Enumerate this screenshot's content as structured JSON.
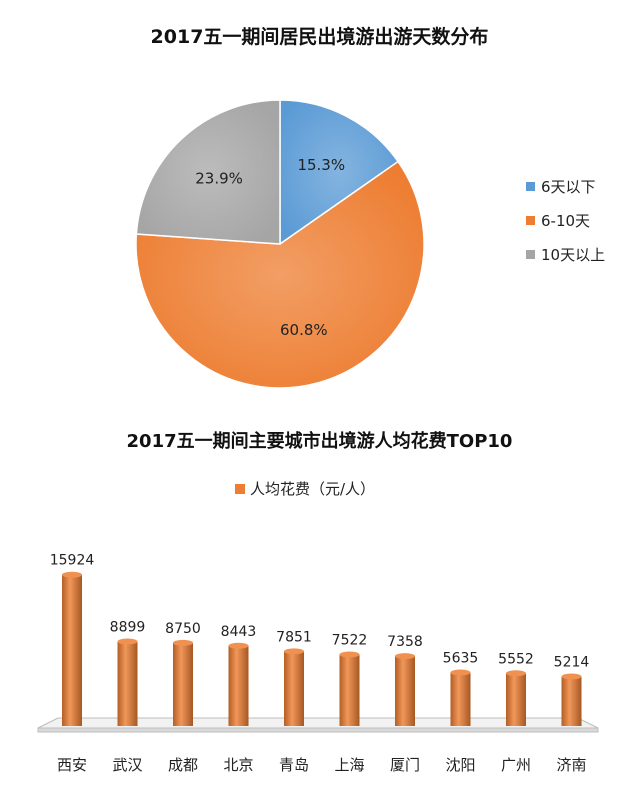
{
  "chart_data": [
    {
      "type": "pie",
      "title": "2017五一期间居民出境游出游天数分布",
      "categories": [
        "6天以下",
        "6-10天",
        "10天以上"
      ],
      "values": [
        15.3,
        60.8,
        23.9
      ],
      "labels": [
        "15.3%",
        "60.8%",
        "23.9%"
      ],
      "colors": [
        "#5b9bd5",
        "#ed7d31",
        "#a5a5a5"
      ],
      "legend_position": "right"
    },
    {
      "type": "bar",
      "title": "2017五一期间主要城市出境游人均花费TOP10",
      "series": [
        {
          "name": "人均花费（元/人）",
          "color": "#ed7d31",
          "values": [
            15924,
            8899,
            8750,
            8443,
            7851,
            7522,
            7358,
            5635,
            5552,
            5214
          ]
        }
      ],
      "categories": [
        "西安",
        "武汉",
        "成都",
        "北京",
        "青岛",
        "上海",
        "厦门",
        "沈阳",
        "广州",
        "济南"
      ],
      "legend_position": "top",
      "grid": false
    }
  ]
}
